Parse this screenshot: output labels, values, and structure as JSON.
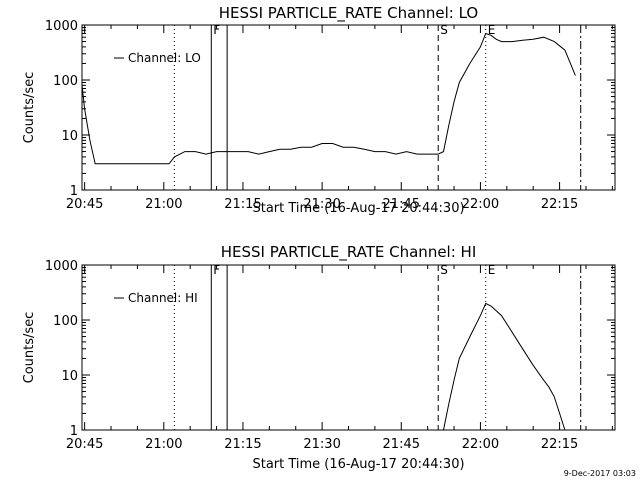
{
  "footer_stamp": "9-Dec-2017 03:03",
  "chart_data": [
    {
      "type": "line",
      "title": "HESSI PARTICLE_RATE Channel: LO",
      "xlabel": "Start Time (16-Aug-17 20:44:30)",
      "ylabel": "Counts/sec",
      "y_scale": "log",
      "ylim": [
        1,
        1000
      ],
      "xlim": [
        "20:44:30",
        "22:25:30"
      ],
      "x_ticks": [
        "20:45",
        "21:00",
        "21:15",
        "21:30",
        "21:45",
        "22:00",
        "22:15"
      ],
      "y_ticks": [
        "1",
        "10",
        "100",
        "1000"
      ],
      "legend": "top-left",
      "markers": [
        {
          "label": "",
          "time": "21:02",
          "style": "dotted"
        },
        {
          "label": "F",
          "time": "21:09",
          "style": "solid"
        },
        {
          "label": "",
          "time": "21:12",
          "style": "solid"
        },
        {
          "label": "S",
          "time": "21:52",
          "style": "dashed"
        },
        {
          "label": "E",
          "time": "22:01",
          "style": "dotted"
        },
        {
          "label": "",
          "time": "22:19",
          "style": "dashdot"
        }
      ],
      "series": [
        {
          "name": "Channel: LO",
          "x": [
            "20:44:30",
            "20:45",
            "20:46",
            "20:47",
            "20:47:30",
            "20:48",
            "20:49",
            "20:50",
            "20:51",
            "20:52",
            "20:53",
            "20:55",
            "20:58",
            "20:59",
            "21:00",
            "21:01",
            "21:02",
            "21:04",
            "21:06",
            "21:08",
            "21:10",
            "21:12",
            "21:14",
            "21:16",
            "21:18",
            "21:20",
            "21:22",
            "21:24",
            "21:26",
            "21:28",
            "21:30",
            "21:32",
            "21:34",
            "21:36",
            "21:38",
            "21:40",
            "21:42",
            "21:44",
            "21:46",
            "21:48",
            "21:50",
            "21:52",
            "21:53",
            "21:54",
            "21:55",
            "21:56",
            "21:58",
            "22:00",
            "22:01",
            "22:02",
            "22:03",
            "22:04",
            "22:06",
            "22:08",
            "22:10",
            "22:12",
            "22:14",
            "22:16",
            "22:18"
          ],
          "values": [
            80,
            30,
            8,
            3,
            3,
            3,
            3,
            3,
            3,
            3,
            3,
            3,
            3,
            3,
            3,
            3,
            4,
            5,
            5,
            4.5,
            5,
            5,
            5,
            5,
            4.5,
            5,
            5.5,
            5.5,
            6,
            6,
            7,
            7,
            6,
            6,
            5.5,
            5,
            5,
            4.5,
            5,
            4.5,
            4.5,
            4.5,
            5,
            15,
            40,
            90,
            200,
            400,
            700,
            650,
            550,
            500,
            500,
            530,
            550,
            600,
            500,
            350,
            120
          ]
        }
      ]
    },
    {
      "type": "line",
      "title": "HESSI PARTICLE_RATE Channel: HI",
      "xlabel": "Start Time (16-Aug-17 20:44:30)",
      "ylabel": "Counts/sec",
      "y_scale": "log",
      "ylim": [
        1,
        1000
      ],
      "xlim": [
        "20:44:30",
        "22:25:30"
      ],
      "x_ticks": [
        "20:45",
        "21:00",
        "21:15",
        "21:30",
        "21:45",
        "22:00",
        "22:15"
      ],
      "y_ticks": [
        "1",
        "10",
        "100",
        "1000"
      ],
      "legend": "top-left",
      "markers": [
        {
          "label": "",
          "time": "21:02",
          "style": "dotted"
        },
        {
          "label": "F",
          "time": "21:09",
          "style": "solid"
        },
        {
          "label": "",
          "time": "21:12",
          "style": "solid"
        },
        {
          "label": "S",
          "time": "21:52",
          "style": "dashed"
        },
        {
          "label": "E",
          "time": "22:01",
          "style": "dotted"
        },
        {
          "label": "",
          "time": "22:19",
          "style": "dashdot"
        }
      ],
      "series": [
        {
          "name": "Channel: HI",
          "x": [
            "21:53",
            "21:54",
            "21:55",
            "21:56",
            "21:58",
            "22:00",
            "22:01",
            "22:02",
            "22:04",
            "22:06",
            "22:08",
            "22:10",
            "22:12",
            "22:13",
            "22:14",
            "22:15",
            "22:16"
          ],
          "values": [
            1,
            3,
            8,
            20,
            50,
            120,
            200,
            180,
            120,
            60,
            30,
            15,
            8,
            6,
            4,
            2,
            1
          ]
        }
      ]
    }
  ]
}
